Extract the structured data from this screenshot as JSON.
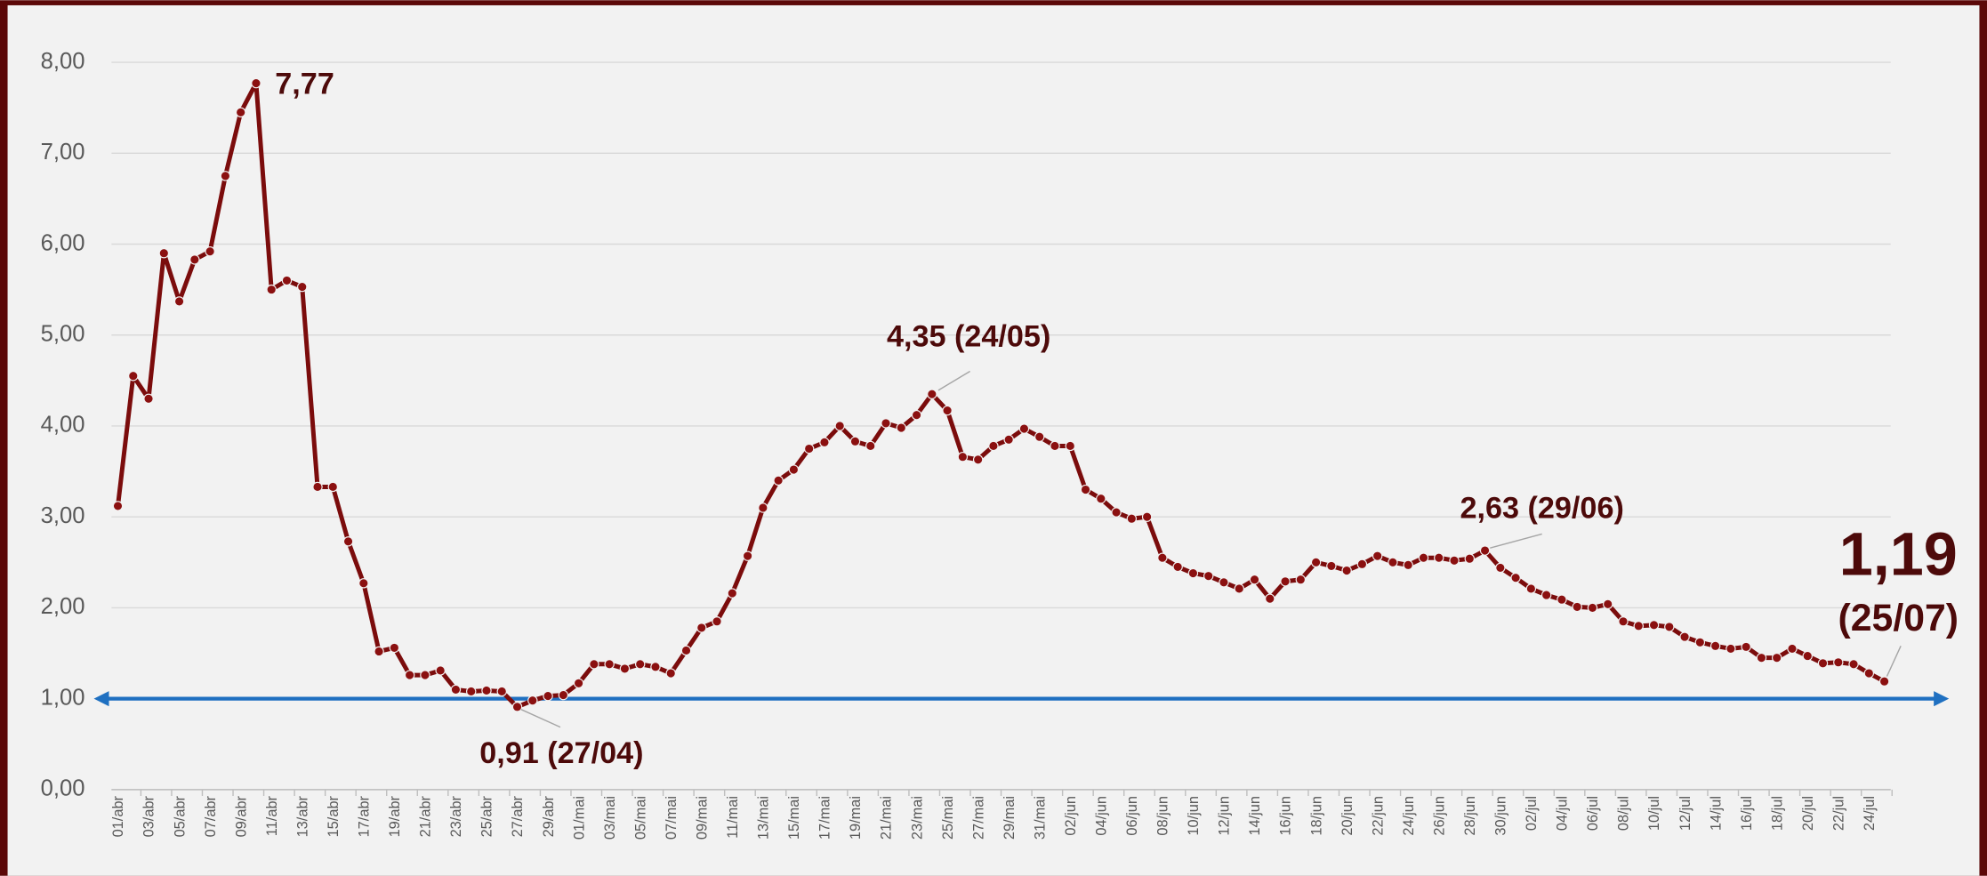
{
  "chart_data": {
    "type": "line",
    "categories": [
      "01/abr",
      null,
      "03/abr",
      null,
      "05/abr",
      null,
      "07/abr",
      null,
      "09/abr",
      null,
      "11/abr",
      null,
      "13/abr",
      null,
      "15/abr",
      null,
      "17/abr",
      null,
      "19/abr",
      null,
      "21/abr",
      null,
      "23/abr",
      null,
      "25/abr",
      null,
      "27/abr",
      null,
      "29/abr",
      null,
      "01/mai",
      null,
      "03/mai",
      null,
      "05/mai",
      null,
      "07/mai",
      null,
      "09/mai",
      null,
      "11/mai",
      null,
      "13/mai",
      null,
      "15/mai",
      null,
      "17/mai",
      null,
      "19/mai",
      null,
      "21/mai",
      null,
      "23/mai",
      null,
      "25/mai",
      null,
      "27/mai",
      null,
      "29/mai",
      null,
      "31/mai",
      null,
      "02/jun",
      null,
      "04/jun",
      null,
      "06/jun",
      null,
      "08/jun",
      null,
      "10/jun",
      null,
      "12/jun",
      null,
      "14/jun",
      null,
      "16/jun",
      null,
      "18/jun",
      null,
      "20/jun",
      null,
      "22/jun",
      null,
      "24/jun",
      null,
      "26/jun",
      null,
      "28/jun",
      null,
      "30/jun",
      null,
      "02/jul",
      null,
      "04/jul",
      null,
      "06/jul",
      null,
      "08/jul",
      null,
      "10/jul",
      null,
      "12/jul",
      null,
      "14/jul",
      null,
      "16/jul",
      null,
      "18/jul",
      null,
      "20/jul",
      null,
      "22/jul",
      null,
      "24/jul",
      null
    ],
    "values": [
      3.12,
      4.55,
      4.3,
      5.9,
      5.37,
      5.83,
      5.92,
      6.75,
      7.45,
      7.77,
      5.5,
      5.6,
      5.53,
      3.33,
      3.33,
      2.73,
      2.27,
      1.52,
      1.56,
      1.26,
      1.26,
      1.31,
      1.1,
      1.08,
      1.09,
      1.08,
      0.91,
      0.98,
      1.03,
      1.04,
      1.17,
      1.38,
      1.38,
      1.33,
      1.38,
      1.35,
      1.28,
      1.53,
      1.78,
      1.85,
      2.16,
      2.57,
      3.1,
      3.4,
      3.52,
      3.75,
      3.82,
      4.0,
      3.83,
      3.78,
      4.03,
      3.98,
      4.12,
      4.35,
      4.17,
      3.66,
      3.63,
      3.78,
      3.85,
      3.97,
      3.88,
      3.78,
      3.78,
      3.3,
      3.2,
      3.05,
      2.98,
      3.0,
      2.55,
      2.45,
      2.38,
      2.35,
      2.28,
      2.21,
      2.31,
      2.1,
      2.29,
      2.31,
      2.5,
      2.46,
      2.41,
      2.48,
      2.57,
      2.5,
      2.47,
      2.55,
      2.55,
      2.52,
      2.54,
      2.63,
      2.44,
      2.33,
      2.21,
      2.14,
      2.09,
      2.01,
      2.0,
      2.04,
      1.85,
      1.8,
      1.81,
      1.79,
      1.68,
      1.62,
      1.58,
      1.55,
      1.57,
      1.45,
      1.45,
      1.55,
      1.47,
      1.39,
      1.4,
      1.38,
      1.28,
      1.19
    ],
    "value_labels": [
      null,
      null,
      null,
      null,
      null,
      null,
      null,
      null,
      null,
      "7,77",
      null,
      null,
      null,
      null,
      null,
      null,
      null,
      null,
      null,
      null,
      null,
      null,
      null,
      null,
      null,
      null,
      "0,91 (27/04)",
      null,
      null,
      null,
      null,
      null,
      null,
      null,
      null,
      null,
      null,
      null,
      null,
      null,
      null,
      null,
      null,
      null,
      null,
      null,
      null,
      null,
      null,
      null,
      null,
      null,
      null,
      "4,35 (24/05)",
      null,
      null,
      null,
      null,
      null,
      null,
      null,
      null,
      null,
      null,
      null,
      null,
      null,
      null,
      null,
      null,
      null,
      null,
      null,
      null,
      null,
      null,
      null,
      null,
      null,
      null,
      null,
      null,
      null,
      null,
      null,
      null,
      null,
      null,
      null,
      "2,63 (29/06)",
      null,
      null,
      null,
      null,
      null,
      null,
      null,
      null,
      null,
      null,
      null,
      null,
      null,
      null,
      null,
      null,
      null,
      null,
      null,
      null,
      null,
      null,
      null,
      null,
      null,
      "1,19 (25/07)"
    ],
    "color": "#7b0c0c",
    "ylim": [
      0,
      8
    ],
    "yticks": [
      {
        "value": 0,
        "label": "0,00"
      },
      {
        "value": 1,
        "label": "1,00"
      },
      {
        "value": 2,
        "label": "2,00"
      },
      {
        "value": 3,
        "label": "3,00"
      },
      {
        "value": 4,
        "label": "4,00"
      },
      {
        "value": 5,
        "label": "5,00"
      },
      {
        "value": 6,
        "label": "6,00"
      },
      {
        "value": 7,
        "label": "7,00"
      },
      {
        "value": 8,
        "label": "8,00"
      }
    ],
    "grid": true,
    "reference_line": {
      "value": 1,
      "color": "#1f70c1"
    }
  }
}
